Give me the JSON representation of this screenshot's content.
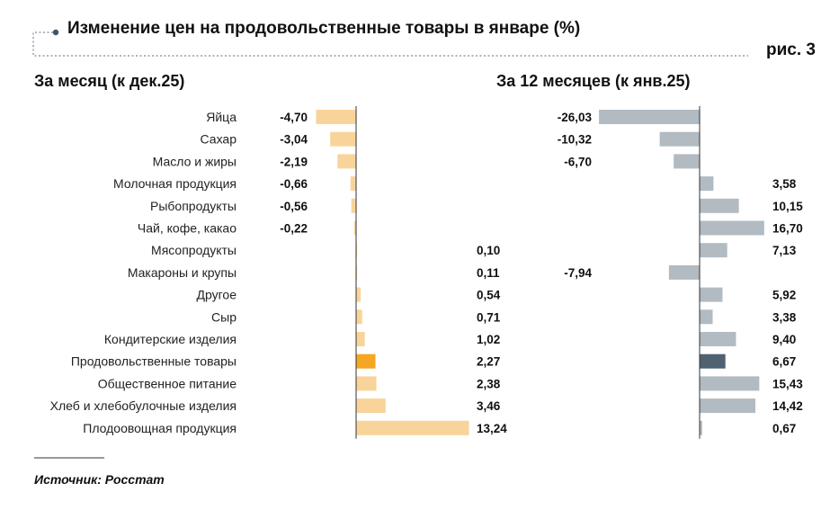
{
  "header": {
    "title": "Изменение цен на продовольственные товары в январе (%)",
    "figure_label": "рис. 3"
  },
  "source": "Источник: Росстат",
  "colors": {
    "left_bar": "#F9D49A",
    "left_highlight": "#F5A623",
    "right_bar": "#B2BBC1",
    "right_highlight": "#4E6272",
    "axis": "#333333",
    "dotted_line": "#7A8A99"
  },
  "chart_data": {
    "type": "bar",
    "orientation": "horizontal",
    "highlight_category": "Продовольственные товары",
    "categories": [
      "Яйца",
      "Сахар",
      "Масло и жиры",
      "Молочная продукция",
      "Рыбопродукты",
      "Чай, кофе, какао",
      "Мясопродукты",
      "Макароны и крупы",
      "Другое",
      "Сыр",
      "Кондитерские изделия",
      "Продовольственные товары",
      "Общественное питание",
      "Хлеб и хлебобулочные изделия",
      "Плодоовощная продукция"
    ],
    "series": [
      {
        "name": "За месяц (к дек.25)",
        "values": [
          -4.7,
          -3.04,
          -2.19,
          -0.66,
          -0.56,
          -0.22,
          0.1,
          0.11,
          0.54,
          0.71,
          1.02,
          2.27,
          2.38,
          3.46,
          13.24
        ],
        "labels": [
          "-4,70",
          "-3,04",
          "-2,19",
          "-0,66",
          "-0,56",
          "-0,22",
          "0,10",
          "0,11",
          "0,54",
          "0,71",
          "1,02",
          "2,27",
          "2,38",
          "3,46",
          "13,24"
        ]
      },
      {
        "name": "За 12 месяцев (к янв.25)",
        "values": [
          -26.03,
          -10.32,
          -6.7,
          3.58,
          10.15,
          16.7,
          7.13,
          -7.94,
          5.92,
          3.38,
          9.4,
          6.67,
          15.43,
          14.42,
          0.67
        ],
        "labels": [
          "-26,03",
          "-10,32",
          "-6,70",
          "3,58",
          "10,15",
          "16,70",
          "7,13",
          "-7,94",
          "5,92",
          "3,38",
          "9,40",
          "6,67",
          "15,43",
          "14,42",
          "0,67"
        ]
      }
    ],
    "grid": false,
    "legend": "none"
  }
}
